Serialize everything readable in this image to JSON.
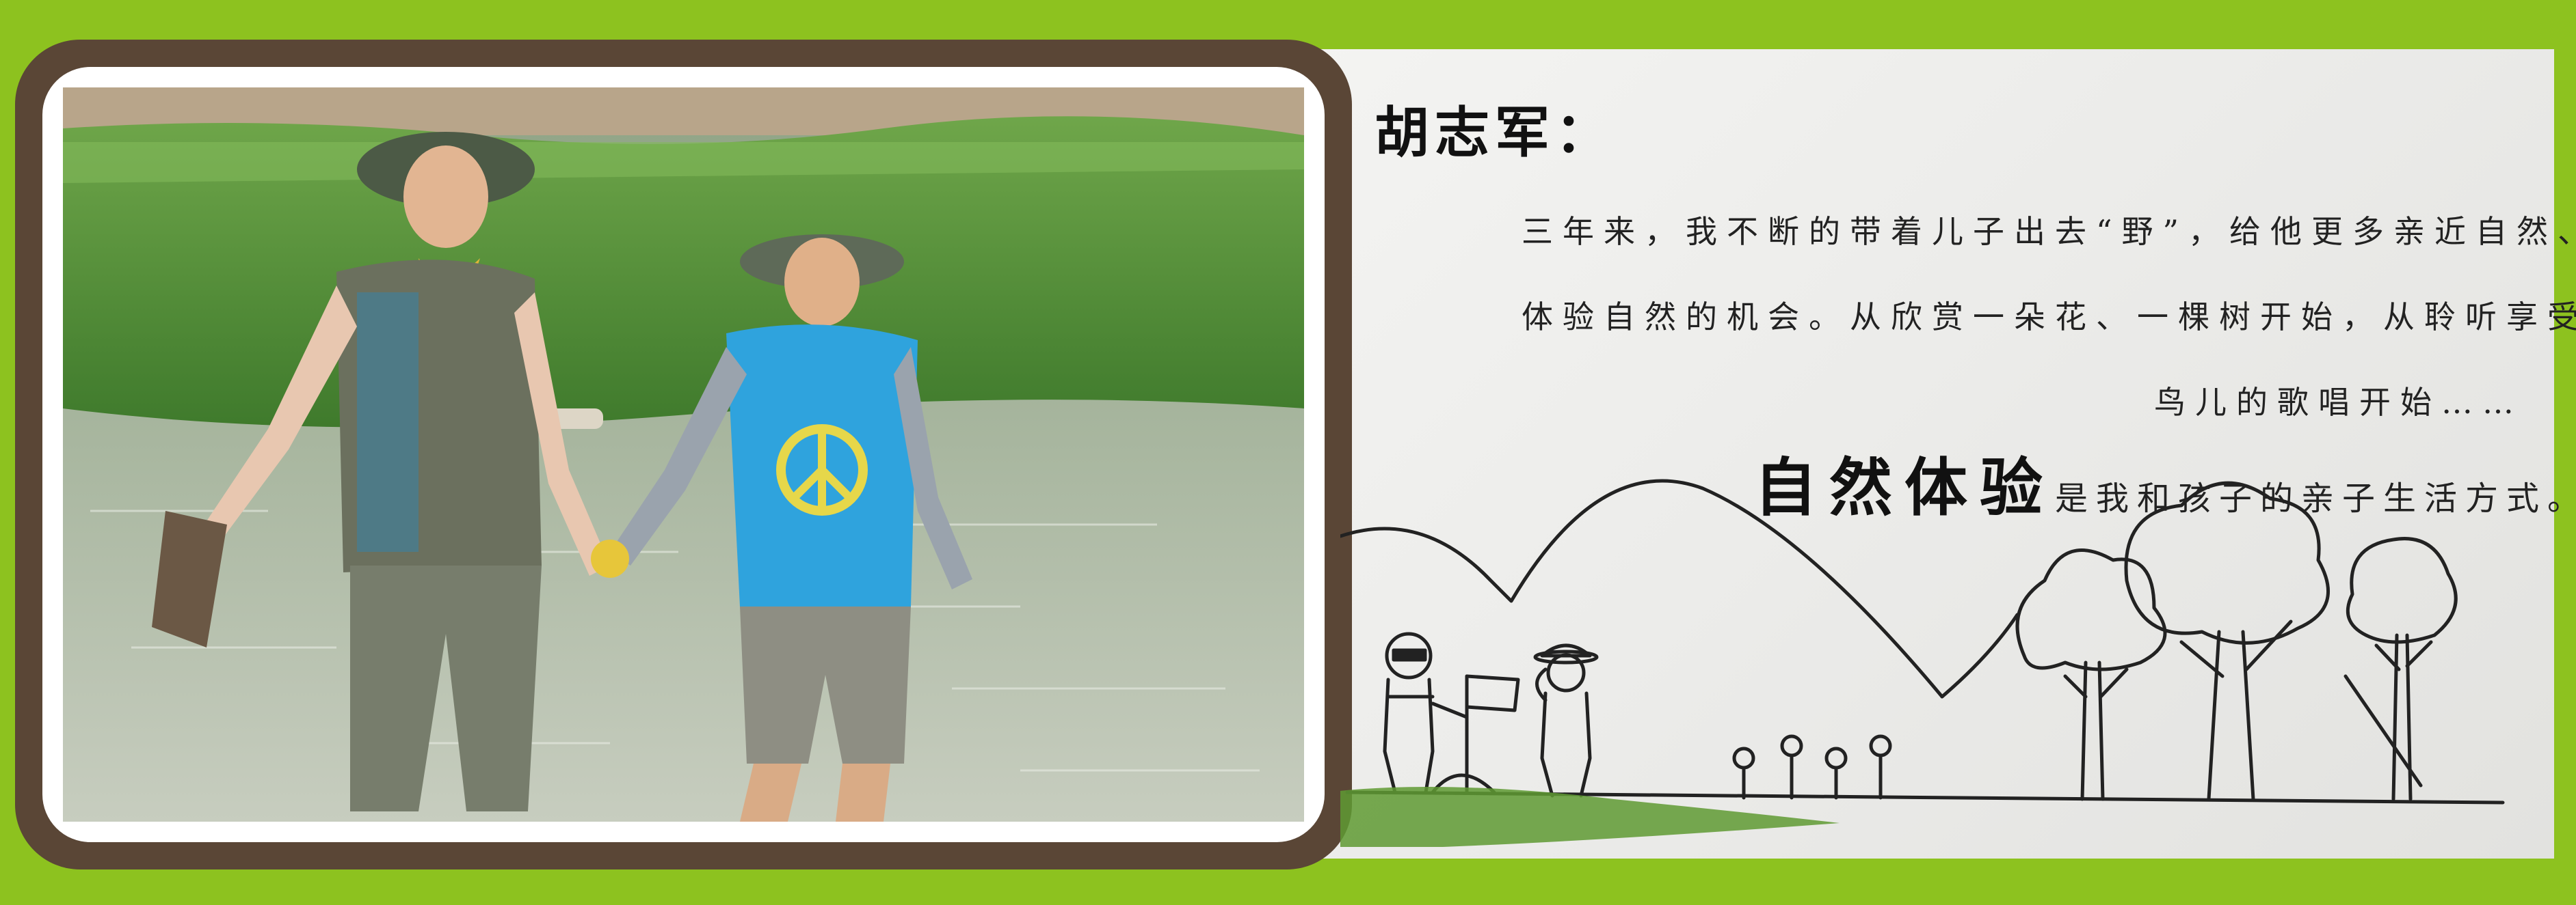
{
  "banner": {
    "colors": {
      "border_green": "#8dc21f",
      "frame_brown": "#5a4636",
      "paper": "#efefed"
    },
    "name": "胡志军：",
    "paragraph_lines": [
      "三年来，我不断的带着儿子出去“野”，给他更多亲近自然、",
      "体验自然的机会。从欣赏一朵花、一棵树开始，从聆听享受",
      "鸟儿的歌唱开始……"
    ],
    "motto_emphasis": "自然体验",
    "motto_rest": "是我和孩子的亲子生活方式。",
    "photo_icon": "family-photo",
    "sketch_icon": "nature-sketch-illustration"
  }
}
